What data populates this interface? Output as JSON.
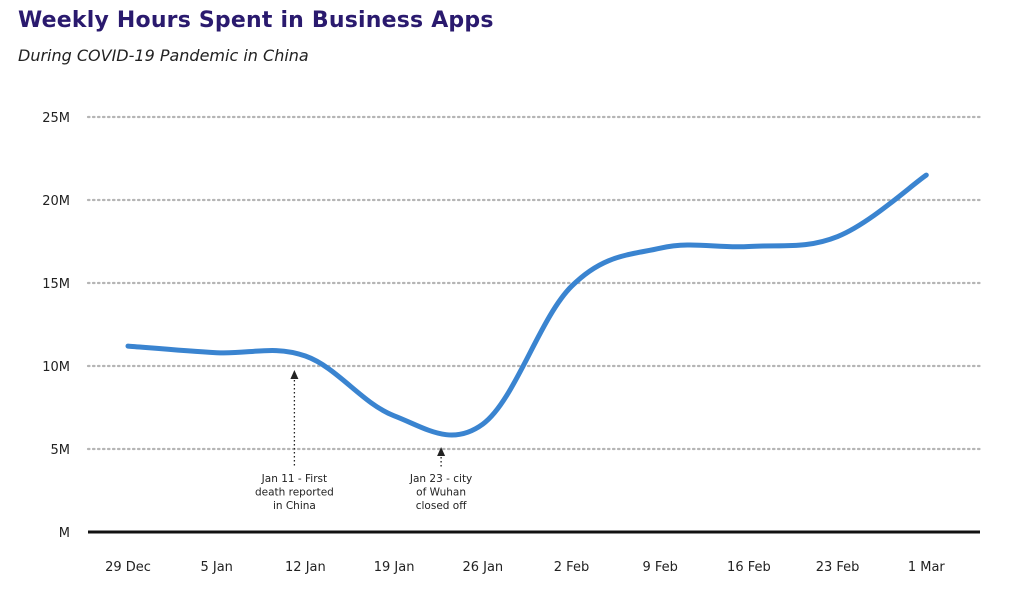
{
  "header": {
    "title": "Weekly Hours Spent in Business Apps",
    "subtitle": "During COVID-19 Pandemic in China"
  },
  "colors": {
    "title": "#2a1a6e",
    "line": "#3a84d0",
    "grid": "#b5b5b5",
    "baseline": "#111111"
  },
  "chart_data": {
    "type": "line",
    "title": "Weekly Hours Spent in Business Apps",
    "subtitle": "During COVID-19 Pandemic in China",
    "categories": [
      "29 Dec",
      "5 Jan",
      "12 Jan",
      "19 Jan",
      "26 Jan",
      "2 Feb",
      "9 Feb",
      "16 Feb",
      "23 Feb",
      "1 Mar"
    ],
    "y_ticks": [
      {
        "value": 0,
        "label": "M"
      },
      {
        "value": 5000000,
        "label": "5M"
      },
      {
        "value": 10000000,
        "label": "10M"
      },
      {
        "value": 15000000,
        "label": "15M"
      },
      {
        "value": 20000000,
        "label": "20M"
      },
      {
        "value": 25000000,
        "label": "25M"
      }
    ],
    "ylim": [
      0,
      25000000
    ],
    "grid": "horizontal dotted",
    "series": [
      {
        "values": [
          11200000,
          10800000,
          10600000,
          7000000,
          6500000,
          14800000,
          17100000,
          17200000,
          17800000,
          21500000
        ]
      }
    ],
    "annotations": [
      {
        "category": "12 Jan",
        "y": 10000000,
        "lines": [
          "Jan 11 - First",
          "death reported",
          "in China"
        ]
      },
      {
        "category": "19 Jan",
        "y": 5000000,
        "lines": [
          "Jan 23 - city",
          "of Wuhan",
          "closed off"
        ]
      }
    ]
  }
}
